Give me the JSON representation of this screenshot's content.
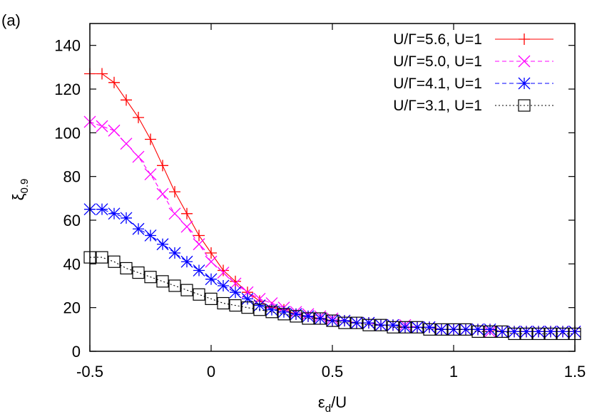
{
  "panel_label": "(a)",
  "chart_data": {
    "type": "line",
    "xlabel_main": "ε",
    "xlabel_sub": "d",
    "xlabel_rest": "/U",
    "ylabel_main": "ξ",
    "ylabel_sub": "0.9",
    "xlim": [
      -0.5,
      1.5
    ],
    "ylim": [
      0,
      150
    ],
    "xticks": [
      -0.5,
      0,
      0.5,
      1,
      1.5
    ],
    "xtick_labels": [
      "-0.5",
      "0",
      "0.5",
      "1",
      "1.5"
    ],
    "yticks": [
      0,
      20,
      40,
      60,
      80,
      100,
      120,
      140
    ],
    "ytick_labels": [
      "0",
      "20",
      "40",
      "60",
      "80",
      "100",
      "120",
      "140"
    ],
    "grid": false,
    "legend_position": "top-right",
    "series": [
      {
        "name": "U/Γ=5.6, U=1",
        "color": "#ff0000",
        "line_style": "solid",
        "marker": "plus",
        "x": [
          -0.5,
          -0.45,
          -0.4,
          -0.35,
          -0.3,
          -0.25,
          -0.2,
          -0.15,
          -0.1,
          -0.05,
          0,
          0.05,
          0.1,
          0.15,
          0.2,
          0.25,
          0.3,
          0.35,
          0.4,
          0.45,
          0.5,
          0.55,
          0.6,
          0.65,
          0.7,
          0.75,
          0.8,
          0.85,
          0.9,
          0.95,
          1.0,
          1.05,
          1.1,
          1.15,
          1.2,
          1.25,
          1.3,
          1.35,
          1.4,
          1.45,
          1.5
        ],
        "y": [
          127,
          127,
          123,
          115,
          107,
          97,
          85,
          73,
          63,
          53,
          45,
          37,
          32,
          27,
          23,
          20,
          19,
          17,
          16,
          15,
          14,
          14,
          13,
          13,
          12,
          12,
          11,
          11,
          11,
          10,
          10,
          10,
          10,
          10,
          9,
          9,
          9,
          9,
          9,
          9,
          9
        ]
      },
      {
        "name": "U/Γ=5.0, U=1",
        "color": "#ff00ff",
        "line_style": "dashed",
        "marker": "cross",
        "x": [
          -0.5,
          -0.45,
          -0.4,
          -0.35,
          -0.3,
          -0.25,
          -0.2,
          -0.15,
          -0.1,
          -0.05,
          0,
          0.05,
          0.1,
          0.15,
          0.2,
          0.25,
          0.3,
          0.35,
          0.4,
          0.45,
          0.5,
          0.55,
          0.6,
          0.65,
          0.7,
          0.75,
          0.8,
          0.85,
          0.9,
          0.95,
          1.0,
          1.05,
          1.1,
          1.15,
          1.2,
          1.25,
          1.3,
          1.35,
          1.4,
          1.45,
          1.5
        ],
        "y": [
          105,
          103,
          101,
          95,
          89,
          81,
          72,
          63,
          57,
          49,
          41,
          36,
          31,
          27,
          24,
          22,
          20,
          18,
          17,
          16,
          15,
          14,
          13,
          13,
          12,
          12,
          12,
          11,
          11,
          10,
          10,
          10,
          10,
          9,
          9,
          9,
          9,
          9,
          9,
          9,
          9
        ]
      },
      {
        "name": "U/Γ=4.1, U=1",
        "color": "#0000ff",
        "line_style": "dashed",
        "marker": "star",
        "x": [
          -0.5,
          -0.45,
          -0.4,
          -0.35,
          -0.3,
          -0.25,
          -0.2,
          -0.15,
          -0.1,
          -0.05,
          0,
          0.05,
          0.1,
          0.15,
          0.2,
          0.25,
          0.3,
          0.35,
          0.4,
          0.45,
          0.5,
          0.55,
          0.6,
          0.65,
          0.7,
          0.75,
          0.8,
          0.85,
          0.9,
          0.95,
          1.0,
          1.05,
          1.1,
          1.15,
          1.2,
          1.25,
          1.3,
          1.35,
          1.4,
          1.45,
          1.5
        ],
        "y": [
          65,
          65,
          63,
          61,
          56,
          53,
          49,
          45,
          41,
          37,
          33,
          30,
          27,
          24,
          21,
          19,
          18,
          17,
          16,
          15,
          14,
          14,
          13,
          13,
          12,
          12,
          11,
          11,
          11,
          10,
          10,
          10,
          10,
          10,
          9,
          9,
          9,
          9,
          9,
          9,
          9
        ]
      },
      {
        "name": "U/Γ=3.1, U=1",
        "color": "#000000",
        "line_style": "dotted",
        "marker": "square",
        "x": [
          -0.5,
          -0.45,
          -0.4,
          -0.35,
          -0.3,
          -0.25,
          -0.2,
          -0.15,
          -0.1,
          -0.05,
          0,
          0.05,
          0.1,
          0.15,
          0.2,
          0.25,
          0.3,
          0.35,
          0.4,
          0.45,
          0.5,
          0.55,
          0.6,
          0.65,
          0.7,
          0.75,
          0.8,
          0.85,
          0.9,
          0.95,
          1.0,
          1.05,
          1.1,
          1.15,
          1.2,
          1.25,
          1.3,
          1.35,
          1.4,
          1.45,
          1.5
        ],
        "y": [
          43,
          43,
          41,
          38,
          36,
          34,
          32,
          30,
          28,
          26,
          24,
          22,
          21,
          20,
          19,
          18,
          17,
          16,
          15,
          15,
          14,
          13,
          13,
          12,
          12,
          11,
          11,
          11,
          10,
          10,
          10,
          10,
          9,
          9,
          9,
          8,
          8,
          8,
          8,
          8,
          8
        ]
      }
    ]
  }
}
